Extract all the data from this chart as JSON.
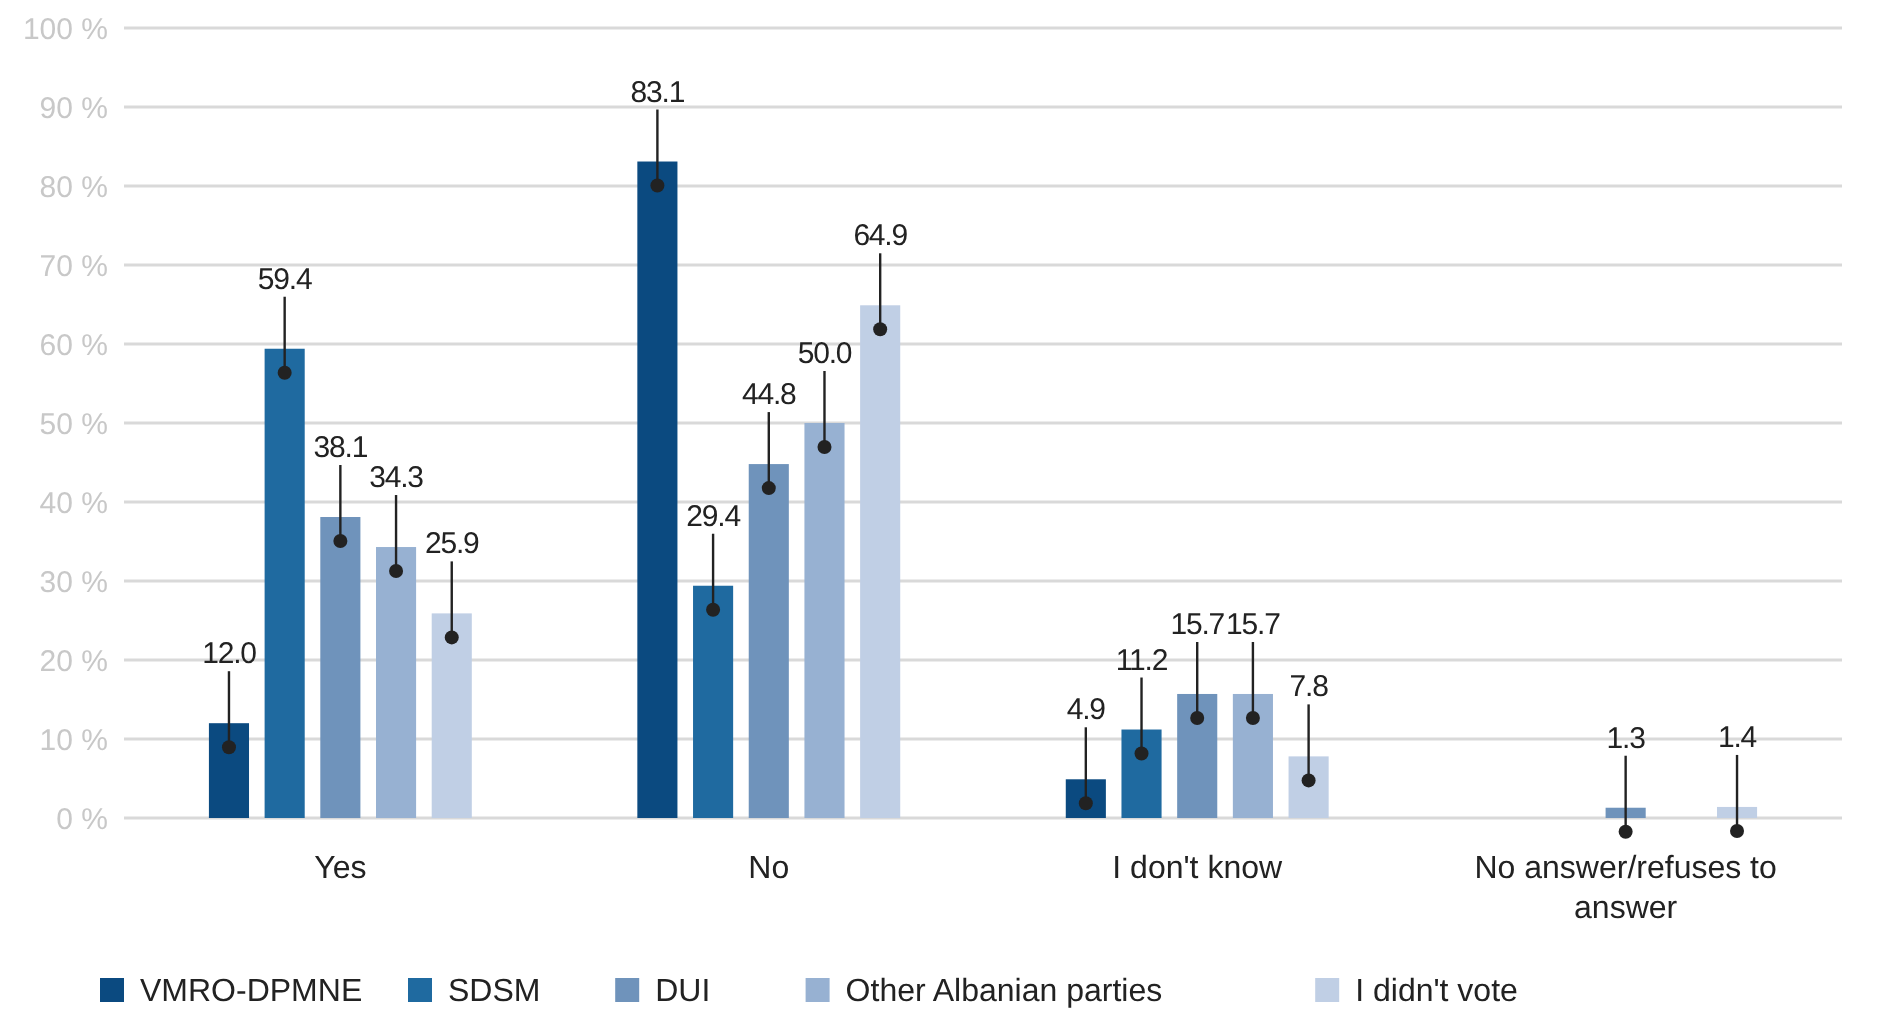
{
  "chart_data": {
    "type": "bar",
    "categories": [
      "Yes",
      "No",
      "I don't know",
      "No answer/refuses to answer"
    ],
    "series": [
      {
        "name": "VMRO-DPMNE",
        "color": "#0b4a80",
        "values": [
          12.0,
          83.1,
          4.9,
          null
        ],
        "value_labels": [
          "12.0",
          "83.1",
          "4.9",
          null
        ]
      },
      {
        "name": "SDSM",
        "color": "#1f6aa0",
        "values": [
          59.4,
          29.4,
          11.2,
          null
        ],
        "value_labels": [
          "59.4",
          "29.4",
          "11.2",
          null
        ]
      },
      {
        "name": "DUI",
        "color": "#6f93bb",
        "values": [
          38.1,
          44.8,
          15.7,
          1.3
        ],
        "value_labels": [
          "38.1",
          "44.8",
          "15.7",
          "1.3"
        ]
      },
      {
        "name": "Other Albanian parties",
        "color": "#97b1d2",
        "values": [
          34.3,
          50.0,
          15.7,
          null
        ],
        "value_labels": [
          "34.3",
          "50.0",
          "15.7",
          null
        ]
      },
      {
        "name": "I didn't vote",
        "color": "#c0cfe5",
        "values": [
          25.9,
          64.9,
          7.8,
          1.4
        ],
        "value_labels": [
          "25.9",
          "64.9",
          "7.8",
          "1.4"
        ]
      }
    ],
    "ylim": [
      0,
      100
    ],
    "yticks": [
      {
        "value": 0,
        "label": "0 %"
      },
      {
        "value": 10,
        "label": "10 %"
      },
      {
        "value": 20,
        "label": "20 %"
      },
      {
        "value": 30,
        "label": "30 %"
      },
      {
        "value": 40,
        "label": "40 %"
      },
      {
        "value": 50,
        "label": "50 %"
      },
      {
        "value": 60,
        "label": "60 %"
      },
      {
        "value": 70,
        "label": "70 %"
      },
      {
        "value": 80,
        "label": "80 %"
      },
      {
        "value": 90,
        "label": "90 %"
      },
      {
        "value": 100,
        "label": "100 %"
      }
    ],
    "grid": "y",
    "legend": "bottom"
  }
}
